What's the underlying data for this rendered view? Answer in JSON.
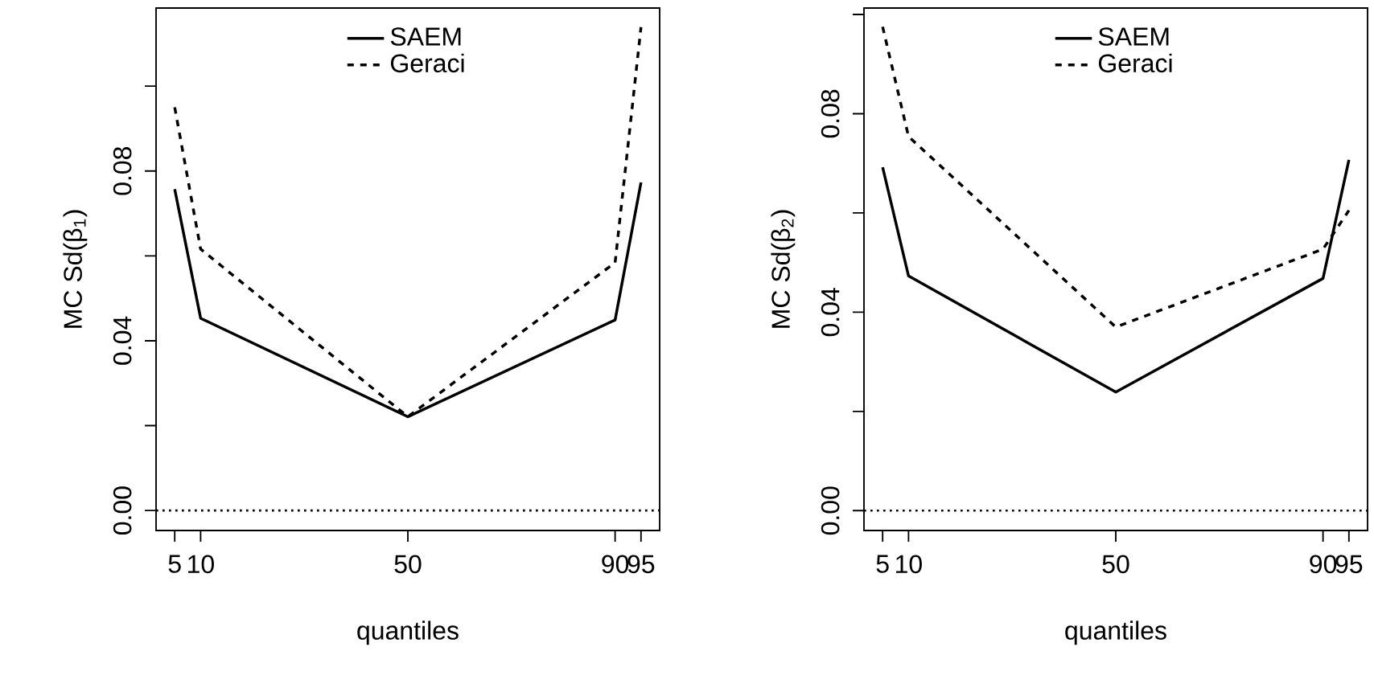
{
  "chart_data": [
    {
      "type": "line",
      "xlabel": "quantiles",
      "ylabel": "MC Sd(β$_{1}$)",
      "x": [
        5,
        10,
        50,
        90,
        95
      ],
      "xlim": [
        1.4,
        98.6
      ],
      "ylim": [
        -0.0047,
        0.1184
      ],
      "xticks": [
        5,
        10,
        50,
        90,
        95
      ],
      "yticks": [
        {
          "value": 0,
          "label": "0.00"
        },
        {
          "value": 0.02,
          "label": null
        },
        {
          "value": 0.04,
          "label": "0.04"
        },
        {
          "value": 0.06,
          "label": null
        },
        {
          "value": 0.08,
          "label": "0.08"
        },
        {
          "value": 0.1,
          "label": null
        }
      ],
      "legend": "top",
      "series": [
        {
          "name": "SAEM",
          "color": "#000000",
          "line_style": "solid",
          "values": [
            0.0757,
            0.0453,
            0.0221,
            0.0449,
            0.0773
          ]
        },
        {
          "name": "Geraci",
          "color": "#000000",
          "line_style": "dashed",
          "values": [
            0.095,
            0.0616,
            0.0221,
            0.0584,
            0.1139
          ]
        }
      ],
      "ref_lines": [
        {
          "axis": "y",
          "value": 0,
          "line_style": "dotted",
          "color": "#000000"
        }
      ]
    },
    {
      "type": "line",
      "xlabel": "quantiles",
      "ylabel": "MC Sd(β$_{2}$)",
      "x": [
        5,
        10,
        50,
        90,
        95
      ],
      "xlim": [
        1.4,
        98.6
      ],
      "ylim": [
        -0.004,
        0.1013
      ],
      "xticks": [
        5,
        10,
        50,
        90,
        95
      ],
      "yticks": [
        {
          "value": 0,
          "label": "0.00"
        },
        {
          "value": 0.02,
          "label": null
        },
        {
          "value": 0.04,
          "label": "0.04"
        },
        {
          "value": 0.06,
          "label": null
        },
        {
          "value": 0.08,
          "label": "0.08"
        },
        {
          "value": 0.1,
          "label": null
        }
      ],
      "legend": "top",
      "series": [
        {
          "name": "SAEM",
          "color": "#000000",
          "line_style": "solid",
          "values": [
            0.0692,
            0.0473,
            0.0239,
            0.0468,
            0.0707
          ]
        },
        {
          "name": "Geraci",
          "color": "#000000",
          "line_style": "dashed",
          "values": [
            0.0975,
            0.0754,
            0.037,
            0.0527,
            0.0605
          ]
        }
      ],
      "ref_lines": [
        {
          "axis": "y",
          "value": 0,
          "line_style": "dotted",
          "color": "#000000"
        }
      ]
    }
  ]
}
